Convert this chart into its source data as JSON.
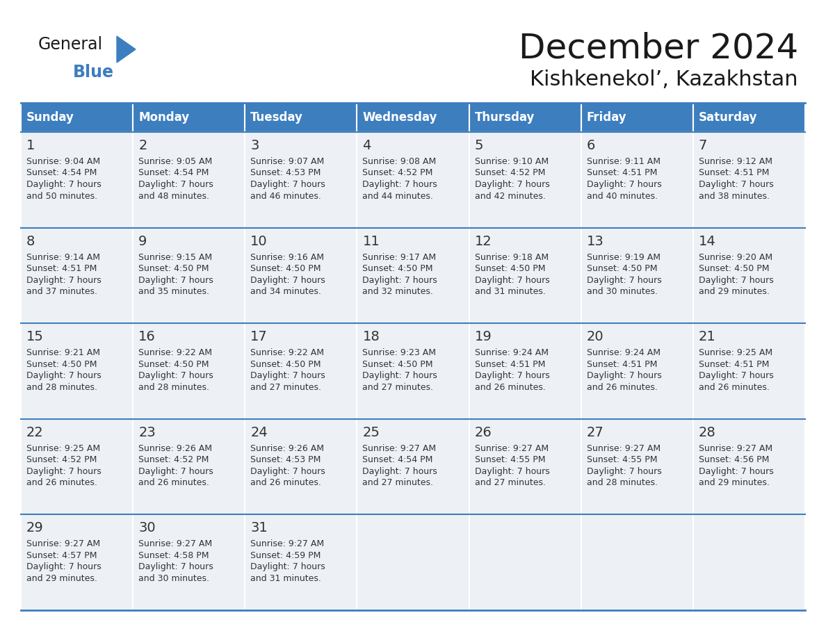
{
  "title": "December 2024",
  "subtitle": "Kishkenekol’, Kazakhstan",
  "header_color": "#3d7ebf",
  "header_text_color": "#ffffff",
  "cell_bg_color": "#edf1f5",
  "empty_cell_color": "#edf1f5",
  "border_color": "#3d7ebf",
  "text_color": "#333333",
  "days_of_week": [
    "Sunday",
    "Monday",
    "Tuesday",
    "Wednesday",
    "Thursday",
    "Friday",
    "Saturday"
  ],
  "weeks": [
    [
      {
        "day": 1,
        "sunrise": "9:04 AM",
        "sunset": "4:54 PM",
        "daylight_l1": "7 hours",
        "daylight_l2": "and 50 minutes."
      },
      {
        "day": 2,
        "sunrise": "9:05 AM",
        "sunset": "4:54 PM",
        "daylight_l1": "7 hours",
        "daylight_l2": "and 48 minutes."
      },
      {
        "day": 3,
        "sunrise": "9:07 AM",
        "sunset": "4:53 PM",
        "daylight_l1": "7 hours",
        "daylight_l2": "and 46 minutes."
      },
      {
        "day": 4,
        "sunrise": "9:08 AM",
        "sunset": "4:52 PM",
        "daylight_l1": "7 hours",
        "daylight_l2": "and 44 minutes."
      },
      {
        "day": 5,
        "sunrise": "9:10 AM",
        "sunset": "4:52 PM",
        "daylight_l1": "7 hours",
        "daylight_l2": "and 42 minutes."
      },
      {
        "day": 6,
        "sunrise": "9:11 AM",
        "sunset": "4:51 PM",
        "daylight_l1": "7 hours",
        "daylight_l2": "and 40 minutes."
      },
      {
        "day": 7,
        "sunrise": "9:12 AM",
        "sunset": "4:51 PM",
        "daylight_l1": "7 hours",
        "daylight_l2": "and 38 minutes."
      }
    ],
    [
      {
        "day": 8,
        "sunrise": "9:14 AM",
        "sunset": "4:51 PM",
        "daylight_l1": "7 hours",
        "daylight_l2": "and 37 minutes."
      },
      {
        "day": 9,
        "sunrise": "9:15 AM",
        "sunset": "4:50 PM",
        "daylight_l1": "7 hours",
        "daylight_l2": "and 35 minutes."
      },
      {
        "day": 10,
        "sunrise": "9:16 AM",
        "sunset": "4:50 PM",
        "daylight_l1": "7 hours",
        "daylight_l2": "and 34 minutes."
      },
      {
        "day": 11,
        "sunrise": "9:17 AM",
        "sunset": "4:50 PM",
        "daylight_l1": "7 hours",
        "daylight_l2": "and 32 minutes."
      },
      {
        "day": 12,
        "sunrise": "9:18 AM",
        "sunset": "4:50 PM",
        "daylight_l1": "7 hours",
        "daylight_l2": "and 31 minutes."
      },
      {
        "day": 13,
        "sunrise": "9:19 AM",
        "sunset": "4:50 PM",
        "daylight_l1": "7 hours",
        "daylight_l2": "and 30 minutes."
      },
      {
        "day": 14,
        "sunrise": "9:20 AM",
        "sunset": "4:50 PM",
        "daylight_l1": "7 hours",
        "daylight_l2": "and 29 minutes."
      }
    ],
    [
      {
        "day": 15,
        "sunrise": "9:21 AM",
        "sunset": "4:50 PM",
        "daylight_l1": "7 hours",
        "daylight_l2": "and 28 minutes."
      },
      {
        "day": 16,
        "sunrise": "9:22 AM",
        "sunset": "4:50 PM",
        "daylight_l1": "7 hours",
        "daylight_l2": "and 28 minutes."
      },
      {
        "day": 17,
        "sunrise": "9:22 AM",
        "sunset": "4:50 PM",
        "daylight_l1": "7 hours",
        "daylight_l2": "and 27 minutes."
      },
      {
        "day": 18,
        "sunrise": "9:23 AM",
        "sunset": "4:50 PM",
        "daylight_l1": "7 hours",
        "daylight_l2": "and 27 minutes."
      },
      {
        "day": 19,
        "sunrise": "9:24 AM",
        "sunset": "4:51 PM",
        "daylight_l1": "7 hours",
        "daylight_l2": "and 26 minutes."
      },
      {
        "day": 20,
        "sunrise": "9:24 AM",
        "sunset": "4:51 PM",
        "daylight_l1": "7 hours",
        "daylight_l2": "and 26 minutes."
      },
      {
        "day": 21,
        "sunrise": "9:25 AM",
        "sunset": "4:51 PM",
        "daylight_l1": "7 hours",
        "daylight_l2": "and 26 minutes."
      }
    ],
    [
      {
        "day": 22,
        "sunrise": "9:25 AM",
        "sunset": "4:52 PM",
        "daylight_l1": "7 hours",
        "daylight_l2": "and 26 minutes."
      },
      {
        "day": 23,
        "sunrise": "9:26 AM",
        "sunset": "4:52 PM",
        "daylight_l1": "7 hours",
        "daylight_l2": "and 26 minutes."
      },
      {
        "day": 24,
        "sunrise": "9:26 AM",
        "sunset": "4:53 PM",
        "daylight_l1": "7 hours",
        "daylight_l2": "and 26 minutes."
      },
      {
        "day": 25,
        "sunrise": "9:27 AM",
        "sunset": "4:54 PM",
        "daylight_l1": "7 hours",
        "daylight_l2": "and 27 minutes."
      },
      {
        "day": 26,
        "sunrise": "9:27 AM",
        "sunset": "4:55 PM",
        "daylight_l1": "7 hours",
        "daylight_l2": "and 27 minutes."
      },
      {
        "day": 27,
        "sunrise": "9:27 AM",
        "sunset": "4:55 PM",
        "daylight_l1": "7 hours",
        "daylight_l2": "and 28 minutes."
      },
      {
        "day": 28,
        "sunrise": "9:27 AM",
        "sunset": "4:56 PM",
        "daylight_l1": "7 hours",
        "daylight_l2": "and 29 minutes."
      }
    ],
    [
      {
        "day": 29,
        "sunrise": "9:27 AM",
        "sunset": "4:57 PM",
        "daylight_l1": "7 hours",
        "daylight_l2": "and 29 minutes."
      },
      {
        "day": 30,
        "sunrise": "9:27 AM",
        "sunset": "4:58 PM",
        "daylight_l1": "7 hours",
        "daylight_l2": "and 30 minutes."
      },
      {
        "day": 31,
        "sunrise": "9:27 AM",
        "sunset": "4:59 PM",
        "daylight_l1": "7 hours",
        "daylight_l2": "and 31 minutes."
      },
      null,
      null,
      null,
      null
    ]
  ],
  "logo_general_color": "#1a1a1a",
  "logo_blue_color": "#3d7ebf"
}
